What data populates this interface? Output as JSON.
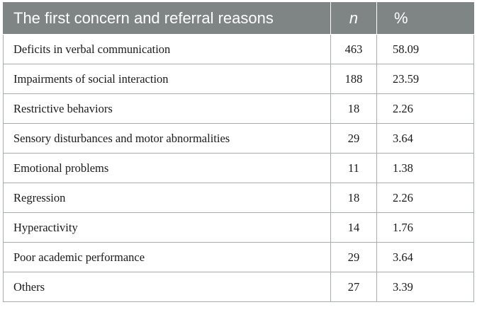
{
  "table": {
    "headers": {
      "reason": "The first concern and referral reasons",
      "n": "n",
      "pct": "%"
    },
    "rows": [
      {
        "reason": "Deficits in verbal communication",
        "n": "463",
        "pct": "58.09"
      },
      {
        "reason": "Impairments of social interaction",
        "n": "188",
        "pct": "23.59"
      },
      {
        "reason": "Restrictive behaviors",
        "n": "18",
        "pct": "2.26"
      },
      {
        "reason": "Sensory disturbances and motor abnormalities",
        "n": "29",
        "pct": "3.64"
      },
      {
        "reason": "Emotional problems",
        "n": "11",
        "pct": "1.38"
      },
      {
        "reason": "Regression",
        "n": "18",
        "pct": "2.26"
      },
      {
        "reason": "Hyperactivity",
        "n": "14",
        "pct": "1.76"
      },
      {
        "reason": "Poor academic performance",
        "n": "29",
        "pct": "3.64"
      },
      {
        "reason": "Others",
        "n": "27",
        "pct": "3.39"
      }
    ],
    "colors": {
      "header_bg": "#7f8585",
      "header_text": "#ffffff",
      "border": "#a8acac"
    }
  }
}
